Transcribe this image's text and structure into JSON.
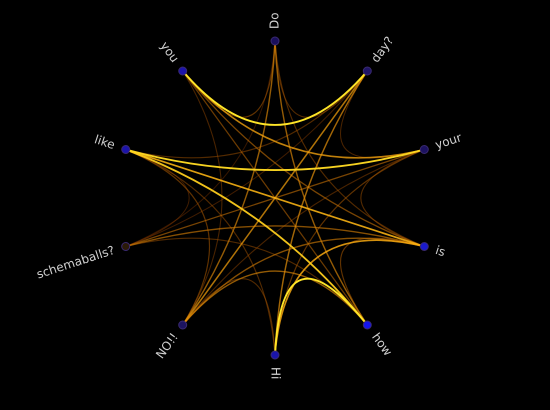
{
  "schemaball": {
    "nodes": [
      {
        "id": "do",
        "label": "Do",
        "fill": "#1a0f5c"
      },
      {
        "id": "day",
        "label": "day?",
        "fill": "#1f1566"
      },
      {
        "id": "your",
        "label": "your",
        "fill": "#1c1260"
      },
      {
        "id": "is",
        "label": "is",
        "fill": "#1a1acc"
      },
      {
        "id": "how",
        "label": "how",
        "fill": "#1414ee"
      },
      {
        "id": "hi",
        "label": "Hi",
        "fill": "#1a14aa"
      },
      {
        "id": "no",
        "label": "NO!!",
        "fill": "#1c1460"
      },
      {
        "id": "schemaballs",
        "label": "schemaballs?",
        "fill": "#2a1a08"
      },
      {
        "id": "like",
        "label": "like",
        "fill": "#1c14aa"
      },
      {
        "id": "you",
        "label": "you",
        "fill": "#1c14aa"
      }
    ],
    "links": [
      {
        "from": "you",
        "to": "day",
        "strength": 1.0
      },
      {
        "from": "like",
        "to": "your",
        "strength": 0.95
      },
      {
        "from": "like",
        "to": "how",
        "strength": 0.9
      },
      {
        "from": "like",
        "to": "is",
        "strength": 0.8
      },
      {
        "from": "how",
        "to": "hi",
        "strength": 1.0
      },
      {
        "from": "hi",
        "to": "is",
        "strength": 0.75
      },
      {
        "from": "you",
        "to": "your",
        "strength": 0.7
      },
      {
        "from": "day",
        "to": "no",
        "strength": 0.65
      },
      {
        "from": "day",
        "to": "hi",
        "strength": 0.6
      },
      {
        "from": "do",
        "to": "how",
        "strength": 0.55
      },
      {
        "from": "do",
        "to": "no",
        "strength": 0.55
      },
      {
        "from": "do",
        "to": "you",
        "strength": 0.35
      },
      {
        "from": "do",
        "to": "day",
        "strength": 0.3
      },
      {
        "from": "schemaballs",
        "to": "is",
        "strength": 0.5
      },
      {
        "from": "schemaballs",
        "to": "your",
        "strength": 0.45
      },
      {
        "from": "no",
        "to": "how",
        "strength": 0.55
      },
      {
        "from": "no",
        "to": "is",
        "strength": 0.5
      },
      {
        "from": "you",
        "to": "is",
        "strength": 0.45
      },
      {
        "from": "like",
        "to": "hi",
        "strength": 0.3
      },
      {
        "from": "like",
        "to": "no",
        "strength": 0.35
      },
      {
        "from": "day",
        "to": "your",
        "strength": 0.25
      },
      {
        "from": "your",
        "to": "is",
        "strength": 0.3
      },
      {
        "from": "hi",
        "to": "no",
        "strength": 0.3
      },
      {
        "from": "you",
        "to": "how",
        "strength": 0.4
      },
      {
        "from": "schemaballs",
        "to": "like",
        "strength": 0.2
      },
      {
        "from": "do",
        "to": "is",
        "strength": 0.3
      },
      {
        "from": "your",
        "to": "hi",
        "strength": 0.35
      },
      {
        "from": "schemaballs",
        "to": "how",
        "strength": 0.3
      },
      {
        "from": "day",
        "to": "like",
        "strength": 0.3
      },
      {
        "from": "you",
        "to": "no",
        "strength": 0.25
      },
      {
        "from": "schemaballs",
        "to": "day",
        "strength": 0.2
      },
      {
        "from": "your",
        "to": "no",
        "strength": 0.25
      },
      {
        "from": "do",
        "to": "schemaballs",
        "strength": 0.15
      },
      {
        "from": "how",
        "to": "is",
        "strength": 0.35
      }
    ]
  }
}
